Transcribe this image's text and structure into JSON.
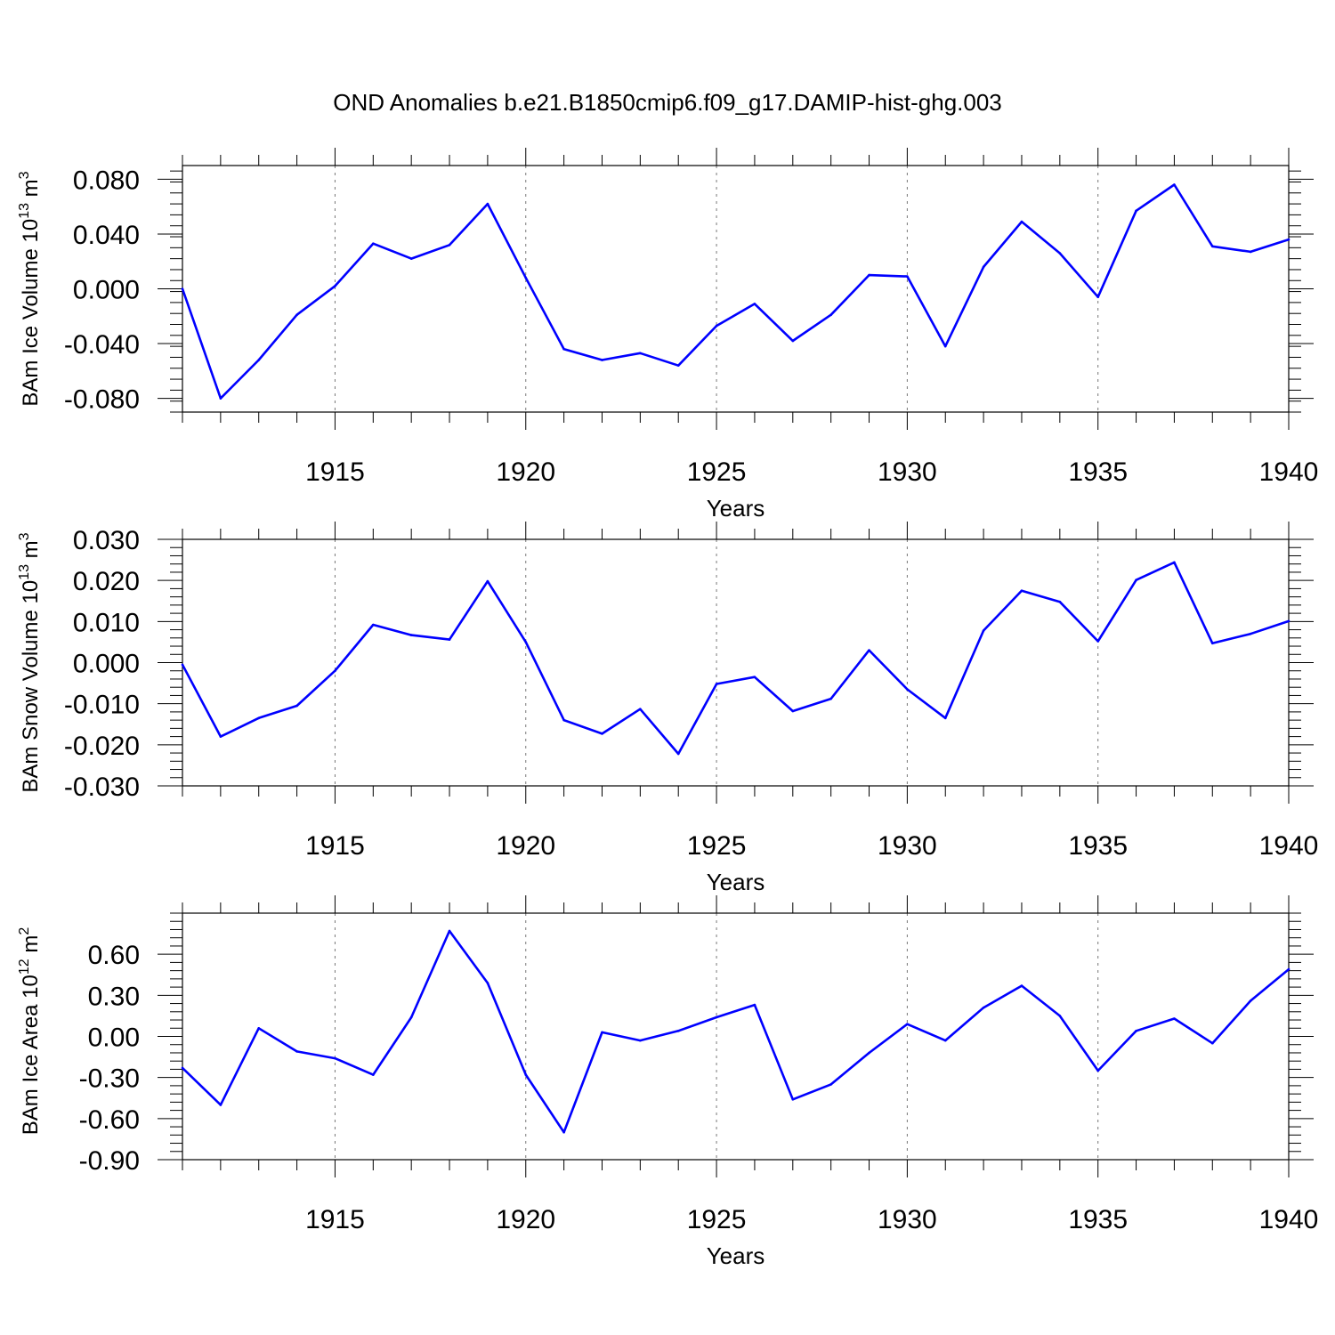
{
  "title": "OND Anomalies b.e21.B1850cmip6.f09_g17.DAMIP-hist-ghg.003",
  "colors": {
    "line": "#0000ff",
    "axis": "#000000",
    "grid": "#777777"
  },
  "chart_data": [
    {
      "type": "line",
      "ylabel": "BAm Ice Volume 10",
      "ylabel_sup": "13",
      "ylabel_unit": " m",
      "ylabel_unit_sup": "3",
      "xlabel": "Years",
      "xlim": [
        1911,
        1940
      ],
      "ylim": [
        -0.09,
        0.09
      ],
      "x_ticks": [
        1915,
        1920,
        1925,
        1930,
        1935,
        1940
      ],
      "y_ticks": [
        -0.08,
        -0.04,
        0.0,
        0.04,
        0.08
      ],
      "y_tick_labels": [
        "-0.080",
        "-0.040",
        "0.000",
        "0.040",
        "0.080"
      ],
      "grid": "vertical dashed at major x ticks",
      "x": [
        1911,
        1912,
        1913,
        1914,
        1915,
        1916,
        1917,
        1918,
        1919,
        1920,
        1921,
        1922,
        1923,
        1924,
        1925,
        1926,
        1927,
        1928,
        1929,
        1930,
        1931,
        1932,
        1933,
        1934,
        1935,
        1936,
        1937,
        1938,
        1939,
        1940
      ],
      "values": [
        0.0,
        -0.08,
        -0.052,
        -0.019,
        0.002,
        0.033,
        0.022,
        0.032,
        0.062,
        0.008,
        -0.044,
        -0.052,
        -0.047,
        -0.056,
        -0.027,
        -0.011,
        -0.038,
        -0.019,
        0.01,
        0.009,
        -0.042,
        0.016,
        0.049,
        0.026,
        -0.006,
        0.057,
        0.076,
        0.031,
        0.027,
        0.036
      ]
    },
    {
      "type": "line",
      "ylabel": "BAm Snow Volume 10",
      "ylabel_sup": "13",
      "ylabel_unit": " m",
      "ylabel_unit_sup": "3",
      "xlabel": "Years",
      "xlim": [
        1911,
        1940
      ],
      "ylim": [
        -0.03,
        0.03
      ],
      "x_ticks": [
        1915,
        1920,
        1925,
        1930,
        1935,
        1940
      ],
      "y_ticks": [
        -0.03,
        -0.02,
        -0.01,
        0.0,
        0.01,
        0.02,
        0.03
      ],
      "y_tick_labels": [
        "-0.030",
        "-0.020",
        "-0.010",
        "0.000",
        "0.010",
        "0.020",
        "0.030"
      ],
      "grid": "vertical dashed at major x ticks",
      "x": [
        1911,
        1912,
        1913,
        1914,
        1915,
        1916,
        1917,
        1918,
        1919,
        1920,
        1921,
        1922,
        1923,
        1924,
        1925,
        1926,
        1927,
        1928,
        1929,
        1930,
        1931,
        1932,
        1933,
        1934,
        1935,
        1936,
        1937,
        1938,
        1939,
        1940
      ],
      "values": [
        -0.0005,
        -0.018,
        -0.0135,
        -0.0105,
        -0.002,
        0.0092,
        0.0067,
        0.0056,
        0.0198,
        0.005,
        -0.014,
        -0.0173,
        -0.0113,
        -0.0222,
        -0.0052,
        -0.0035,
        -0.0118,
        -0.0088,
        0.003,
        -0.0065,
        -0.0135,
        0.0078,
        0.0175,
        0.0148,
        0.0052,
        0.0201,
        0.0244,
        0.0047,
        0.007,
        0.0101
      ]
    },
    {
      "type": "line",
      "ylabel": "BAm Ice Area 10",
      "ylabel_sup": "12",
      "ylabel_unit": " m",
      "ylabel_unit_sup": "2",
      "xlabel": "Years",
      "xlim": [
        1911,
        1940
      ],
      "ylim": [
        -0.9,
        0.9
      ],
      "x_ticks": [
        1915,
        1920,
        1925,
        1930,
        1935,
        1940
      ],
      "y_ticks": [
        -0.9,
        -0.6,
        -0.3,
        0.0,
        0.3,
        0.6
      ],
      "y_tick_labels": [
        "-0.90",
        "-0.60",
        "-0.30",
        "0.00",
        "0.30",
        "0.60"
      ],
      "grid": "vertical dashed at major x ticks",
      "x": [
        1911,
        1912,
        1913,
        1914,
        1915,
        1916,
        1917,
        1918,
        1919,
        1920,
        1921,
        1922,
        1923,
        1924,
        1925,
        1926,
        1927,
        1928,
        1929,
        1930,
        1931,
        1932,
        1933,
        1934,
        1935,
        1936,
        1937,
        1938,
        1939,
        1940
      ],
      "values": [
        -0.23,
        -0.5,
        0.06,
        -0.11,
        -0.16,
        -0.28,
        0.14,
        0.77,
        0.39,
        -0.28,
        -0.7,
        0.03,
        -0.03,
        0.04,
        0.14,
        0.23,
        -0.46,
        -0.35,
        -0.12,
        0.09,
        -0.03,
        0.21,
        0.37,
        0.15,
        -0.25,
        0.04,
        0.13,
        -0.05,
        0.26,
        0.49
      ]
    }
  ]
}
